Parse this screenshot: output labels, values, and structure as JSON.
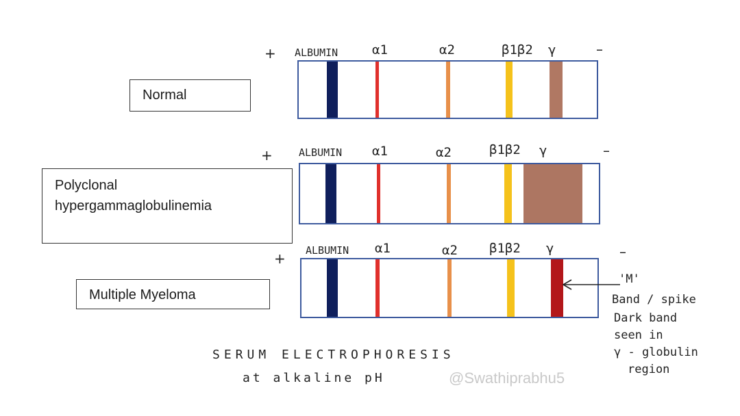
{
  "panels": [
    {
      "id": "normal",
      "condition": "Normal",
      "markers": {
        "plus": "+",
        "albumin": "ALBUMIN",
        "alpha1": "α1",
        "alpha2": "α2",
        "beta": "β1β2",
        "gamma": "γ",
        "minus": "–"
      }
    },
    {
      "id": "polyclonal",
      "condition_line1": "Polyclonal",
      "condition_line2": "hypergammaglobulinemia",
      "markers": {
        "plus": "+",
        "albumin": "ALBUMIN",
        "alpha1": "α1",
        "alpha2": "α2",
        "beta": "β1β2",
        "gamma": "γ",
        "minus": "–"
      }
    },
    {
      "id": "myeloma",
      "condition": "Multiple Myeloma",
      "markers": {
        "plus": "+",
        "albumin": "ALBUMIN",
        "alpha1": "α1",
        "alpha2": "α2",
        "beta": "β1β2",
        "gamma": "γ",
        "minus": "–"
      }
    }
  ],
  "annotation": {
    "lines": [
      "'M'",
      "Band / spike",
      "Dark band",
      "seen in",
      "γ - globulin",
      "region"
    ]
  },
  "caption": {
    "line1": "SERUM ELECTROPHORESIS",
    "line2": "at alkaline pH"
  },
  "watermark": "@Swathiprabhu5",
  "colors": {
    "albumin": "#0f1f5c",
    "alpha1": "#e0302c",
    "alpha2": "#e8904a",
    "beta": "#f5c21b",
    "gamma_normal": "#b07863",
    "gamma_polyclonal": "#ad7662",
    "gamma_myeloma": "#b3171a",
    "strip_border": "#3d5a9e"
  }
}
